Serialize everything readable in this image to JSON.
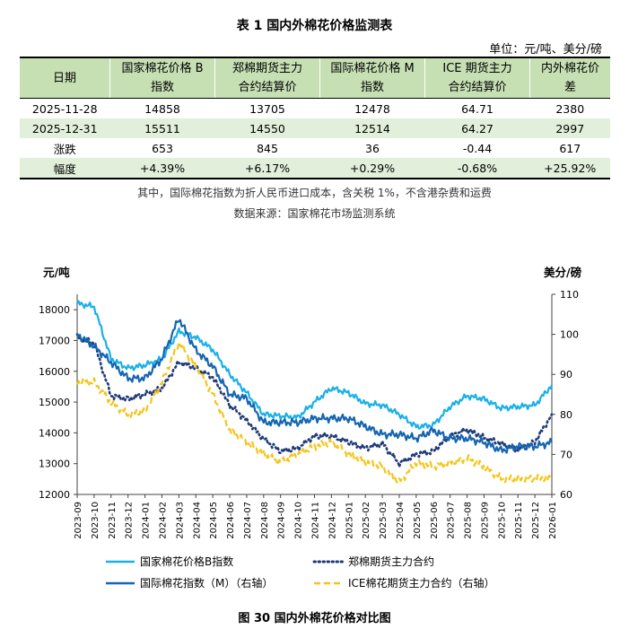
{
  "table": {
    "title": "表 1   国内外棉花价格监测表",
    "unit": "单位：元/吨、美分/磅",
    "headers": [
      [
        "日期"
      ],
      [
        "国家棉花价格 B",
        "指数"
      ],
      [
        "郑棉期货主力",
        "合约结算价"
      ],
      [
        "国际棉花价格 M",
        "指数"
      ],
      [
        "ICE 期货主力",
        "合约结算价"
      ],
      [
        "内外棉花价",
        "差"
      ]
    ],
    "rows": [
      [
        "2025-11-28",
        "14858",
        "13705",
        "12478",
        "64.71",
        "2380"
      ],
      [
        "2025-12-31",
        "15511",
        "14550",
        "12514",
        "64.27",
        "2997"
      ],
      [
        "涨跌",
        "653",
        "845",
        "36",
        "-0.44",
        "617"
      ],
      [
        "幅度",
        "+4.39%",
        "+6.17%",
        "+0.29%",
        "-0.68%",
        "+25.92%"
      ]
    ],
    "note": "其中，国际棉花指数为折人民币进口成本，含关税 1%，不含港杂费和运费",
    "source": "数据来源：国家棉花市场监测系统"
  },
  "chart_data": {
    "type": "line",
    "left_axis_label": "元/吨",
    "right_axis_label": "美分/磅",
    "left_ylim": [
      12000,
      18500
    ],
    "right_ylim": [
      60,
      110
    ],
    "left_ticks": [
      "18000",
      "17000",
      "16000",
      "15000",
      "14000",
      "13000",
      "12000"
    ],
    "right_ticks": [
      "110",
      "100",
      "90",
      "80",
      "70",
      "60"
    ],
    "x": [
      "2023-09",
      "2023-10",
      "2023-11",
      "2023-12",
      "2024-01",
      "2024-02",
      "2024-03",
      "2024-04",
      "2024-05",
      "2024-06",
      "2024-07",
      "2024-08",
      "2024-09",
      "2024-10",
      "2024-11",
      "2024-12",
      "2025-01",
      "2025-02",
      "2025-03",
      "2025-04",
      "2025-05",
      "2025-06",
      "2025-07",
      "2025-08",
      "2025-09",
      "2025-10",
      "2025-11",
      "2025-12",
      "2026-01"
    ],
    "series": [
      {
        "name": "国家棉花价格B指数",
        "axis": "left",
        "color": "#1ab0e8",
        "style": "solid",
        "values": [
          18200,
          18100,
          16400,
          16100,
          16200,
          16400,
          17300,
          17100,
          16700,
          15900,
          15300,
          14600,
          14550,
          14500,
          15000,
          15450,
          15300,
          14950,
          14900,
          14600,
          14200,
          14250,
          14850,
          15200,
          15100,
          14800,
          14850,
          14900,
          15550
        ]
      },
      {
        "name": "郑棉期货主力合约",
        "axis": "left",
        "color": "#1f3b7a",
        "style": "dotted",
        "values": [
          17100,
          16900,
          15200,
          15100,
          15250,
          15450,
          16300,
          16100,
          15800,
          14900,
          14400,
          13800,
          13400,
          13500,
          13900,
          13900,
          13700,
          13500,
          13650,
          13000,
          13300,
          13400,
          13900,
          14100,
          13850,
          13650,
          13450,
          13700,
          14600
        ]
      },
      {
        "name": "国际棉花指数（M）（右轴）",
        "axis": "right",
        "color": "#1565b0",
        "style": "solid",
        "values": [
          100,
          97,
          93,
          89,
          89,
          94,
          104,
          96,
          92,
          85,
          84,
          78,
          78,
          78,
          79,
          79,
          79,
          77,
          75,
          75,
          74,
          76,
          74,
          74,
          73,
          71,
          72,
          72,
          73
        ]
      },
      {
        "name": "ICE棉花期货主力合约（右轴）",
        "axis": "right",
        "color": "#f5c518",
        "style": "dashed",
        "values": [
          88,
          88,
          83,
          80,
          81,
          88,
          98,
          92,
          85,
          76,
          73,
          70,
          68,
          70,
          72,
          73,
          70,
          68,
          67,
          63,
          68,
          67,
          68,
          69,
          67,
          64,
          64,
          64,
          64
        ]
      }
    ],
    "caption": "图 30   国内外棉花价格对比图"
  }
}
